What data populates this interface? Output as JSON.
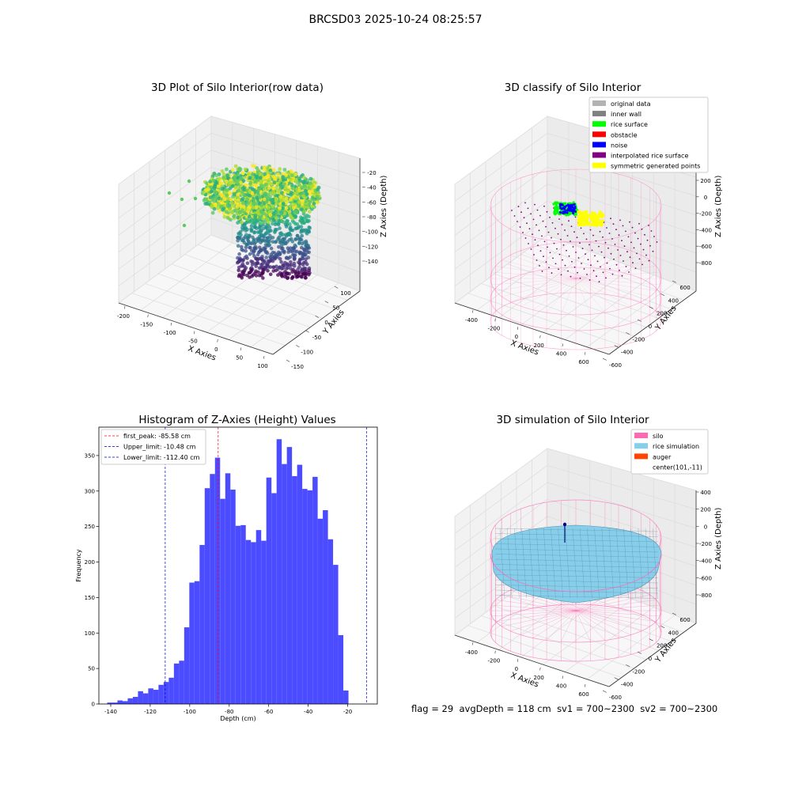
{
  "figure": {
    "suptitle": "BRCSD03 2025-10-24 08:25:57",
    "footer": {
      "flag": "flag = 29",
      "avg_depth": "avgDepth = 118 cm",
      "sv1": "sv1 = 700~2300",
      "sv2": "sv2 = 700~2300"
    }
  },
  "colors": {
    "hist_bar": "#4b4bff",
    "first_peak_line": "#ff0000",
    "limit_line": "#0000cc",
    "silo_wire": "#ff69b4",
    "rice_sim": "#87ceeb",
    "auger": "#ff4500",
    "original_data": "#b3b3b3",
    "inner_wall": "#808080",
    "rice_surface": "#00ff00",
    "obstacle": "#ff0000",
    "noise": "#0000ff",
    "interpolated_rice_surface": "#800080",
    "symmetric_generated_points": "#ffff00"
  },
  "chart_data": [
    {
      "type": "scatter",
      "title": "3D Plot of Silo Interior(row data)",
      "xlabel": "X Axies",
      "ylabel": "Y Axies",
      "zlabel": "Z Axies (Depth)",
      "x_ticks": [
        "-200",
        "-150",
        "-100",
        "-50",
        "0",
        "50",
        "100"
      ],
      "y_ticks": [
        "100",
        "50",
        "0",
        "-50",
        "-100",
        "-150"
      ],
      "z_ticks": [
        "-20",
        "-40",
        "-60",
        "-80",
        "-100",
        "-120",
        "-140"
      ],
      "xlim": [
        -210,
        110
      ],
      "ylim": [
        -160,
        110
      ],
      "zlim": [
        -145,
        -10
      ],
      "colormap": "viridis"
    },
    {
      "type": "scatter",
      "title": "3D classify of Silo Interior",
      "xlabel": "X Axies",
      "ylabel": "Y Axies",
      "zlabel": "Z Axies (Depth)",
      "x_ticks": [
        "-400",
        "-200",
        "0",
        "200",
        "400",
        "600"
      ],
      "y_ticks": [
        "600",
        "400",
        "200",
        "0",
        "-200",
        "-400",
        "-600"
      ],
      "z_ticks": [
        "200",
        "0",
        "-200",
        "-400",
        "-600",
        "-800"
      ],
      "legend": [
        {
          "label": "original data",
          "color": "#b3b3b3"
        },
        {
          "label": "inner wall",
          "color": "#808080"
        },
        {
          "label": "rice surface",
          "color": "#00ff00"
        },
        {
          "label": "obstacle",
          "color": "#ff0000"
        },
        {
          "label": "noise",
          "color": "#0000ff"
        },
        {
          "label": "interpolated rice surface",
          "color": "#800080"
        },
        {
          "label": "symmetric generated points",
          "color": "#ffff00"
        }
      ],
      "legend_position": "top-right"
    },
    {
      "type": "bar",
      "title": "Histogram of Z-Axies (Height) Values",
      "xlabel": "Depth (cm)",
      "ylabel": "Frequency",
      "xlim": [
        -146,
        -5
      ],
      "ylim": [
        0,
        390
      ],
      "x_ticks": [
        -140,
        -120,
        -100,
        -80,
        -60,
        -40,
        -20
      ],
      "y_ticks": [
        0,
        50,
        100,
        150,
        200,
        250,
        300,
        350
      ],
      "bin_start": -141.8,
      "bin_width": 2.6,
      "values": [
        2,
        2,
        5,
        4,
        8,
        10,
        18,
        15,
        22,
        20,
        27,
        31,
        37,
        57,
        61,
        108,
        171,
        173,
        224,
        304,
        324,
        347,
        289,
        325,
        302,
        251,
        252,
        231,
        228,
        245,
        230,
        319,
        297,
        373,
        338,
        362,
        321,
        337,
        303,
        301,
        320,
        261,
        273,
        232,
        196,
        97,
        19
      ],
      "vlines": [
        {
          "label": "first_peak: -85.58 cm",
          "x": -85.58,
          "color": "#ff0000"
        },
        {
          "label": "Upper_limit: -10.48 cm",
          "x": -10.48,
          "color": "#0000cc"
        },
        {
          "label": "Lower_limit: -112.40 cm",
          "x": -112.4,
          "color": "#0000cc"
        }
      ],
      "legend_position": "top-left"
    },
    {
      "type": "scatter",
      "title": "3D simulation of Silo Interior",
      "xlabel": "X Axies",
      "ylabel": "Y Axies",
      "zlabel": "Z Axies (Depth)",
      "x_ticks": [
        "-400",
        "-200",
        "0",
        "200",
        "400",
        "600"
      ],
      "y_ticks": [
        "600",
        "400",
        "200",
        "0",
        "-200",
        "-400",
        "-600"
      ],
      "z_ticks": [
        "400",
        "200",
        "0",
        "-200",
        "-400",
        "-600",
        "-800"
      ],
      "legend": [
        {
          "label": "silo",
          "color": "#ff69b4"
        },
        {
          "label": "rice simulation",
          "color": "#87ceeb"
        },
        {
          "label": "auger",
          "color": "#ff4500"
        },
        {
          "label": "center(101,-11)",
          "color": ""
        }
      ],
      "legend_position": "top-right"
    }
  ]
}
